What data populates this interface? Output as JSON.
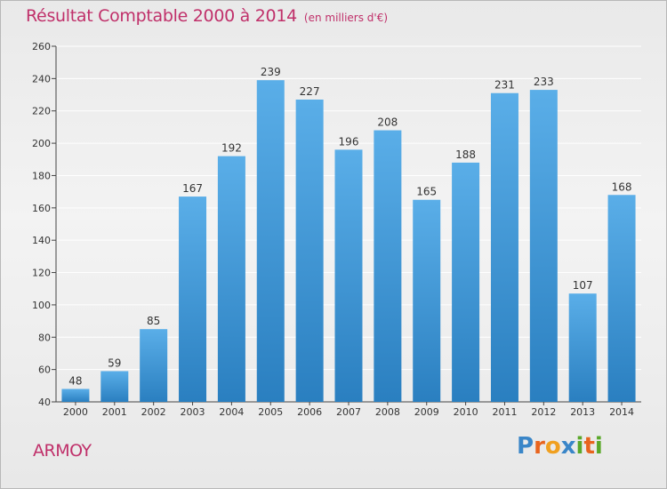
{
  "header": {
    "title": "Résultat Comptable 2000 à 2014",
    "unit": "(en milliers d'€)"
  },
  "commune": "ARMOY",
  "logo": {
    "text": "Proxiti",
    "letter_colors": [
      "#3a86c8",
      "#e8641e",
      "#f0a020",
      "#3a86c8",
      "#5aa82a",
      "#e8641e",
      "#5aa82a"
    ]
  },
  "colors": {
    "title": "#c0306a",
    "bar_top": "#5aaee8",
    "bar_bottom": "#2a7fc0",
    "grid": "#ffffff"
  },
  "chart_data": {
    "type": "bar",
    "title": "Résultat Comptable 2000 à 2014",
    "subtitle": "(en milliers d'€)",
    "xlabel": "",
    "ylabel": "",
    "categories": [
      "2000",
      "2001",
      "2002",
      "2003",
      "2004",
      "2005",
      "2006",
      "2007",
      "2008",
      "2009",
      "2010",
      "2011",
      "2012",
      "2013",
      "2014"
    ],
    "values": [
      48,
      59,
      85,
      167,
      192,
      239,
      227,
      196,
      208,
      165,
      188,
      231,
      233,
      107,
      168
    ],
    "ylim": [
      40,
      260
    ],
    "yticks": [
      40,
      60,
      80,
      100,
      120,
      140,
      160,
      180,
      200,
      220,
      240,
      260
    ],
    "grid": true
  }
}
